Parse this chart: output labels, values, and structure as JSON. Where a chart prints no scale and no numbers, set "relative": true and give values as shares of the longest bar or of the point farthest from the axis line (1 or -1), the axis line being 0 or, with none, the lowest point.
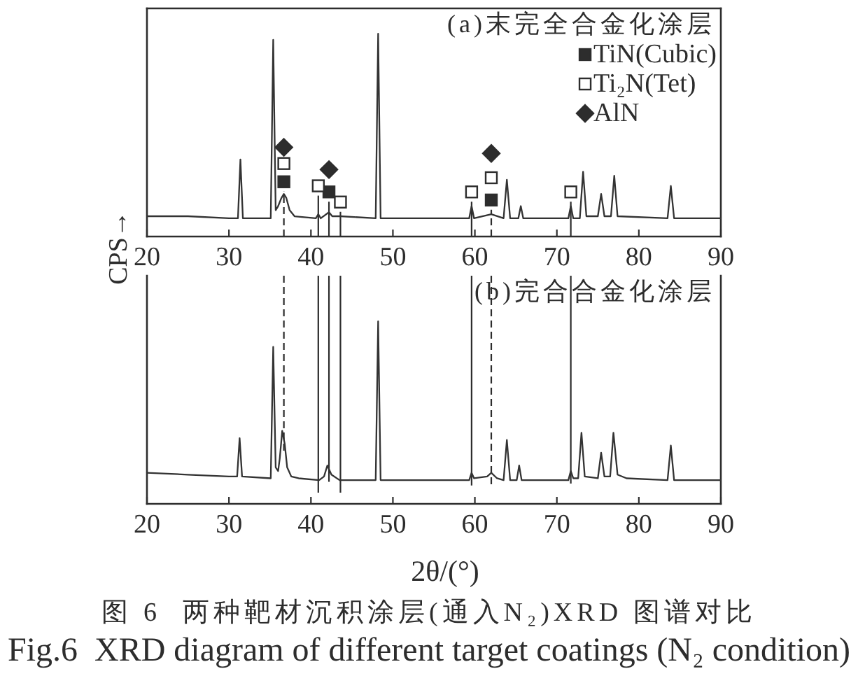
{
  "chart_data": [
    {
      "type": "line",
      "title": "(a)末完全合金化涂层",
      "ylabel": "CPS→",
      "relative": true,
      "xlim": [
        20,
        90
      ],
      "xticks": [
        20,
        30,
        40,
        50,
        60,
        70,
        80,
        90
      ],
      "legend": "top right",
      "series": [
        {
          "color": "#333333",
          "x": [
            20,
            25,
            30,
            31.1,
            31.4,
            31.7,
            35.1,
            35.4,
            35.7,
            36.0,
            36.4,
            36.7,
            37.0,
            37.4,
            38.0,
            40.6,
            40.9,
            41.2,
            42.2,
            42.6,
            43.6,
            47.9,
            48.2,
            48.5,
            59.3,
            59.6,
            59.9,
            62.0,
            63.5,
            63.9,
            64.3,
            65.3,
            65.6,
            65.9,
            71.4,
            71.7,
            72.0,
            72.8,
            73.2,
            73.6,
            75.0,
            75.4,
            75.8,
            76.6,
            77.0,
            77.4,
            83.5,
            83.9,
            84.3,
            90
          ],
          "values": [
            0.1,
            0.1,
            0.09,
            0.09,
            0.38,
            0.09,
            0.09,
            0.97,
            0.13,
            0.15,
            0.19,
            0.21,
            0.19,
            0.13,
            0.1,
            0.09,
            0.11,
            0.09,
            0.12,
            0.1,
            0.1,
            0.09,
            1.0,
            0.09,
            0.09,
            0.15,
            0.09,
            0.11,
            0.09,
            0.28,
            0.09,
            0.09,
            0.15,
            0.09,
            0.09,
            0.15,
            0.09,
            0.09,
            0.32,
            0.1,
            0.1,
            0.21,
            0.1,
            0.1,
            0.3,
            0.1,
            0.09,
            0.25,
            0.09,
            0.09
          ]
        },
        {
          "type": "scatter",
          "name": "TiN(Cubic)",
          "marker": "square",
          "color": "#2d2d2d",
          "x": [
            36.7,
            42.2,
            62.0
          ],
          "values": [
            0.27,
            0.22,
            0.18
          ]
        },
        {
          "type": "scatter",
          "name": "Ti₂N(Tet)",
          "marker": "square",
          "color": "#ffffff",
          "x": [
            36.7,
            40.9,
            43.6,
            59.6,
            62.0,
            71.7
          ],
          "values": [
            0.36,
            0.25,
            0.17,
            0.22,
            0.29,
            0.22
          ]
        },
        {
          "type": "scatter",
          "name": "AlN",
          "marker": "diamond",
          "color": "#2d2d2d",
          "x": [
            36.7,
            42.2,
            62.0
          ],
          "values": [
            0.44,
            0.33,
            0.41
          ]
        }
      ],
      "ref_lines": [
        {
          "axis": "x",
          "value": 36.7,
          "line_style": "dashed"
        },
        {
          "axis": "x",
          "value": 40.9
        },
        {
          "axis": "x",
          "value": 42.2
        },
        {
          "axis": "x",
          "value": 43.6
        },
        {
          "axis": "x",
          "value": 59.6
        },
        {
          "axis": "x",
          "value": 62.0,
          "line_style": "dashed"
        },
        {
          "axis": "x",
          "value": 71.7
        }
      ]
    },
    {
      "type": "line",
      "title": "(b)完合合金化涂层",
      "xlabel": "2θ/(°)",
      "relative": true,
      "xlim": [
        20,
        90
      ],
      "xticks": [
        20,
        30,
        40,
        50,
        60,
        70,
        80,
        90
      ],
      "series": [
        {
          "color": "#333333",
          "x": [
            20,
            25,
            30,
            31.0,
            31.3,
            31.6,
            35.1,
            35.4,
            35.7,
            36.0,
            36.2,
            36.5,
            36.8,
            37.1,
            37.6,
            38.5,
            41.0,
            41.6,
            42.0,
            42.5,
            43.5,
            47.9,
            48.2,
            48.5,
            59.3,
            59.6,
            59.9,
            61.5,
            62.0,
            62.7,
            63.5,
            63.9,
            64.3,
            65.1,
            65.4,
            65.7,
            71.4,
            71.7,
            72.0,
            72.6,
            73.0,
            73.4,
            75.0,
            75.4,
            75.8,
            76.5,
            76.9,
            77.4,
            78.5,
            83.5,
            83.9,
            84.3,
            90
          ],
          "values": [
            0.17,
            0.16,
            0.15,
            0.15,
            0.36,
            0.15,
            0.14,
            0.86,
            0.2,
            0.18,
            0.25,
            0.4,
            0.33,
            0.2,
            0.15,
            0.14,
            0.13,
            0.15,
            0.21,
            0.16,
            0.13,
            0.13,
            1.0,
            0.13,
            0.13,
            0.17,
            0.14,
            0.15,
            0.17,
            0.14,
            0.13,
            0.35,
            0.13,
            0.13,
            0.21,
            0.13,
            0.13,
            0.18,
            0.14,
            0.14,
            0.39,
            0.15,
            0.14,
            0.28,
            0.15,
            0.15,
            0.39,
            0.16,
            0.14,
            0.13,
            0.32,
            0.13,
            0.13
          ]
        }
      ],
      "ref_lines": [
        {
          "axis": "x",
          "value": 36.7,
          "line_style": "dashed"
        },
        {
          "axis": "x",
          "value": 40.9
        },
        {
          "axis": "x",
          "value": 42.2
        },
        {
          "axis": "x",
          "value": 43.6
        },
        {
          "axis": "x",
          "value": 59.6
        },
        {
          "axis": "x",
          "value": 62.0,
          "line_style": "dashed"
        },
        {
          "axis": "x",
          "value": 71.7
        }
      ],
      "annotations": [
        "图 6  两种靶材沉积涂层(通入N₂)XRD 图谱对比",
        "Fig.6  XRD diagram of different target coatings (N₂ condition)"
      ]
    }
  ]
}
